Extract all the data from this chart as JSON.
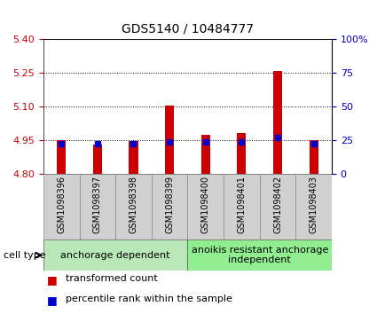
{
  "title": "GDS5140 / 10484777",
  "samples": [
    "GSM1098396",
    "GSM1098397",
    "GSM1098398",
    "GSM1098399",
    "GSM1098400",
    "GSM1098401",
    "GSM1098402",
    "GSM1098403"
  ],
  "red_values": [
    4.95,
    4.93,
    4.945,
    5.102,
    4.975,
    4.982,
    5.255,
    4.95
  ],
  "blue_values": [
    4.932,
    4.935,
    4.932,
    4.942,
    4.942,
    4.942,
    4.962,
    4.932
  ],
  "ymin": 4.8,
  "ymax": 5.4,
  "yticks": [
    4.8,
    4.95,
    5.1,
    5.25,
    5.4
  ],
  "y2ticks_right": [
    0,
    25,
    50,
    75,
    100
  ],
  "groups": [
    {
      "label": "anchorage dependent",
      "indices": [
        0,
        1,
        2,
        3
      ],
      "color": "#b8e8b8"
    },
    {
      "label": "anoikis resistant anchorage\nindependent",
      "indices": [
        4,
        5,
        6,
        7
      ],
      "color": "#90ee90"
    }
  ],
  "bar_color": "#cc0000",
  "dot_color": "#0000cc",
  "bar_width": 0.25,
  "background_color": "#ffffff",
  "plot_bg_color": "#ffffff",
  "label_bg_color": "#d0d0d0",
  "legend_red": "transformed count",
  "legend_blue": "percentile rank within the sample",
  "cell_type_label": "cell type",
  "ytick_color": "#cc0000",
  "y2tick_color": "#0000cc",
  "dotted_lines": [
    4.95,
    5.1,
    5.25
  ],
  "title_fontsize": 10,
  "tick_fontsize": 8,
  "sample_fontsize": 7,
  "legend_fontsize": 8,
  "group_fontsize": 8
}
